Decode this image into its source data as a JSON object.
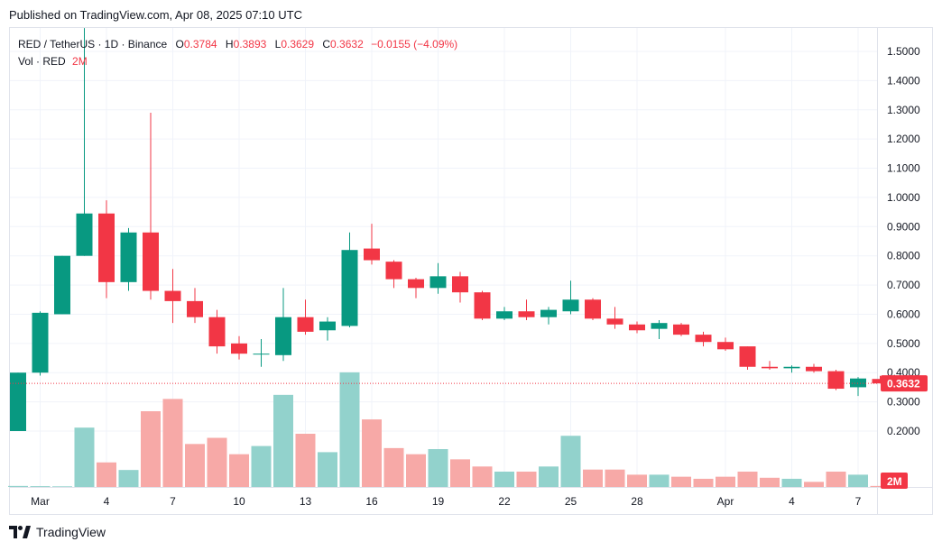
{
  "header": {
    "published": "Published on TradingView.com, Apr 08, 2025 07:10 UTC"
  },
  "legend": {
    "symbol": "RED / TetherUS · 1D · Binance",
    "o_label": "O",
    "o_value": "0.3784",
    "h_label": "H",
    "h_value": "0.3893",
    "l_label": "L",
    "l_value": "0.3629",
    "c_label": "C",
    "c_value": "0.3632",
    "change": "−0.0155 (−4.09%)",
    "vol_label": "Vol · RED",
    "vol_value": "2M"
  },
  "price_tag": "0.3632",
  "vol_tag": "2M",
  "logo": {
    "text": "TradingView",
    "icon": "tradingview-logo-icon"
  },
  "colors": {
    "up": "#089981",
    "down": "#f23645",
    "vol_up": "#92d2cc",
    "vol_down": "#f7a9a7",
    "grid": "#f0f3fa"
  },
  "chart_data": {
    "type": "candlestick",
    "ylim": [
      0.14,
      1.58
    ],
    "yticks": [
      1.5,
      1.4,
      1.3,
      1.2,
      1.1,
      1.0,
      0.9,
      0.8,
      0.7,
      0.6,
      0.5,
      0.4,
      0.3,
      0.2
    ],
    "ytick_labels": [
      "1.5000",
      "1.4000",
      "1.3000",
      "1.2000",
      "1.1000",
      "1.0000",
      "0.9000",
      "0.8000",
      "0.7000",
      "0.6000",
      "0.5000",
      "0.4000",
      "0.3000",
      "0.2000"
    ],
    "xtick_labels": [
      {
        "index": 1,
        "label": "Mar"
      },
      {
        "index": 4,
        "label": "4"
      },
      {
        "index": 7,
        "label": "7"
      },
      {
        "index": 10,
        "label": "10"
      },
      {
        "index": 13,
        "label": "13"
      },
      {
        "index": 16,
        "label": "16"
      },
      {
        "index": 19,
        "label": "19"
      },
      {
        "index": 22,
        "label": "22"
      },
      {
        "index": 25,
        "label": "25"
      },
      {
        "index": 28,
        "label": "28"
      },
      {
        "index": 32,
        "label": "Apr"
      },
      {
        "index": 35,
        "label": "4"
      },
      {
        "index": 38,
        "label": "7"
      }
    ],
    "candles": [
      {
        "o": 0.2,
        "h": 0.4,
        "l": 0.2,
        "c": 0.4,
        "v": 0.05
      },
      {
        "o": 0.4,
        "h": 0.61,
        "l": 0.39,
        "c": 0.605,
        "v": 0.04
      },
      {
        "o": 0.6,
        "h": 0.8,
        "l": 0.6,
        "c": 0.8,
        "v": 0.03
      },
      {
        "o": 0.8,
        "h": 1.58,
        "l": 0.8,
        "c": 0.945,
        "v": 2.9
      },
      {
        "o": 0.945,
        "h": 0.99,
        "l": 0.655,
        "c": 0.71,
        "v": 1.2
      },
      {
        "o": 0.71,
        "h": 0.895,
        "l": 0.68,
        "c": 0.88,
        "v": 0.83
      },
      {
        "o": 0.88,
        "h": 1.29,
        "l": 0.65,
        "c": 0.68,
        "v": 3.7
      },
      {
        "o": 0.68,
        "h": 0.755,
        "l": 0.57,
        "c": 0.645,
        "v": 4.3
      },
      {
        "o": 0.645,
        "h": 0.69,
        "l": 0.57,
        "c": 0.59,
        "v": 2.1
      },
      {
        "o": 0.59,
        "h": 0.615,
        "l": 0.465,
        "c": 0.49,
        "v": 2.4
      },
      {
        "o": 0.5,
        "h": 0.525,
        "l": 0.445,
        "c": 0.465,
        "v": 1.6
      },
      {
        "o": 0.465,
        "h": 0.515,
        "l": 0.42,
        "c": 0.465,
        "v": 2.0
      },
      {
        "o": 0.46,
        "h": 0.69,
        "l": 0.44,
        "c": 0.59,
        "v": 4.5
      },
      {
        "o": 0.59,
        "h": 0.65,
        "l": 0.53,
        "c": 0.54,
        "v": 2.6
      },
      {
        "o": 0.545,
        "h": 0.59,
        "l": 0.51,
        "c": 0.575,
        "v": 1.7
      },
      {
        "o": 0.56,
        "h": 0.88,
        "l": 0.555,
        "c": 0.82,
        "v": 5.6
      },
      {
        "o": 0.825,
        "h": 0.91,
        "l": 0.77,
        "c": 0.785,
        "v": 3.3
      },
      {
        "o": 0.78,
        "h": 0.785,
        "l": 0.69,
        "c": 0.72,
        "v": 1.9
      },
      {
        "o": 0.72,
        "h": 0.725,
        "l": 0.655,
        "c": 0.69,
        "v": 1.6
      },
      {
        "o": 0.69,
        "h": 0.775,
        "l": 0.67,
        "c": 0.73,
        "v": 1.85
      },
      {
        "o": 0.73,
        "h": 0.745,
        "l": 0.64,
        "c": 0.675,
        "v": 1.35
      },
      {
        "o": 0.675,
        "h": 0.68,
        "l": 0.58,
        "c": 0.585,
        "v": 1.0
      },
      {
        "o": 0.585,
        "h": 0.625,
        "l": 0.58,
        "c": 0.61,
        "v": 0.75
      },
      {
        "o": 0.61,
        "h": 0.65,
        "l": 0.58,
        "c": 0.59,
        "v": 0.75
      },
      {
        "o": 0.59,
        "h": 0.625,
        "l": 0.565,
        "c": 0.615,
        "v": 1.0
      },
      {
        "o": 0.61,
        "h": 0.715,
        "l": 0.6,
        "c": 0.65,
        "v": 2.5
      },
      {
        "o": 0.65,
        "h": 0.655,
        "l": 0.58,
        "c": 0.585,
        "v": 0.85
      },
      {
        "o": 0.585,
        "h": 0.625,
        "l": 0.55,
        "c": 0.565,
        "v": 0.85
      },
      {
        "o": 0.565,
        "h": 0.575,
        "l": 0.535,
        "c": 0.545,
        "v": 0.6
      },
      {
        "o": 0.55,
        "h": 0.58,
        "l": 0.515,
        "c": 0.57,
        "v": 0.6
      },
      {
        "o": 0.565,
        "h": 0.57,
        "l": 0.525,
        "c": 0.53,
        "v": 0.5
      },
      {
        "o": 0.53,
        "h": 0.54,
        "l": 0.49,
        "c": 0.505,
        "v": 0.4
      },
      {
        "o": 0.505,
        "h": 0.52,
        "l": 0.475,
        "c": 0.48,
        "v": 0.5
      },
      {
        "o": 0.49,
        "h": 0.49,
        "l": 0.41,
        "c": 0.42,
        "v": 0.75
      },
      {
        "o": 0.42,
        "h": 0.44,
        "l": 0.41,
        "c": 0.415,
        "v": 0.45
      },
      {
        "o": 0.415,
        "h": 0.425,
        "l": 0.4,
        "c": 0.42,
        "v": 0.4
      },
      {
        "o": 0.42,
        "h": 0.43,
        "l": 0.4,
        "c": 0.405,
        "v": 0.25
      },
      {
        "o": 0.405,
        "h": 0.41,
        "l": 0.34,
        "c": 0.345,
        "v": 0.75
      },
      {
        "o": 0.35,
        "h": 0.385,
        "l": 0.32,
        "c": 0.38,
        "v": 0.6
      },
      {
        "o": 0.3784,
        "h": 0.3893,
        "l": 0.3629,
        "c": 0.3632,
        "v": 0.05
      }
    ]
  }
}
